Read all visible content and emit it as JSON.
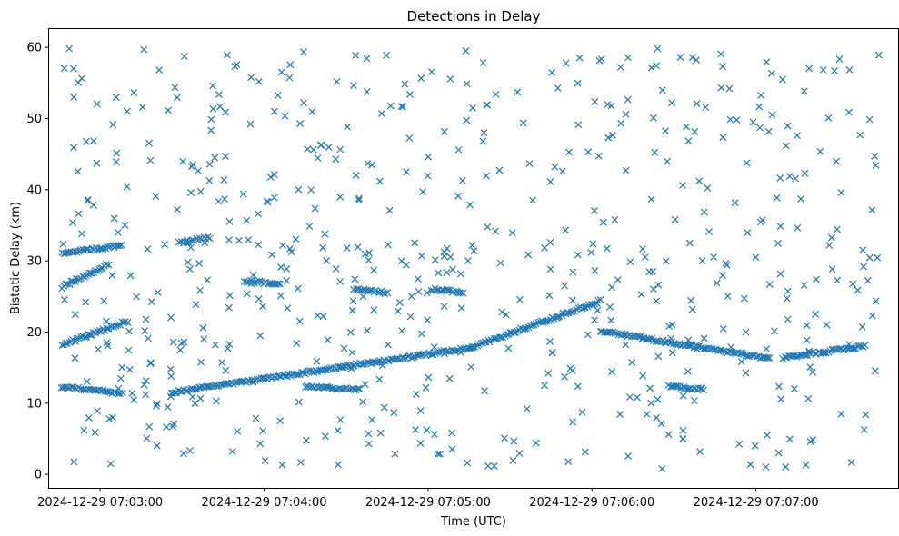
{
  "chart_data": {
    "type": "scatter",
    "title": "Detections in Delay",
    "xlabel": "Time (UTC)",
    "ylabel": "Bistatic Delay (km)",
    "x_axis_type": "time",
    "x_tick_labels": [
      {
        "t": "2024-12-29T07:03:00",
        "label": "2024-12-29 07:03:00"
      },
      {
        "t": "2024-12-29T07:04:00",
        "label": "2024-12-29 07:04:00"
      },
      {
        "t": "2024-12-29T07:05:00",
        "label": "2024-12-29 07:05:00"
      },
      {
        "t": "2024-12-29T07:06:00",
        "label": "2024-12-29 07:06:00"
      },
      {
        "t": "2024-12-29T07:07:00",
        "label": "2024-12-29 07:07:00"
      }
    ],
    "xlim": [
      "2024-12-29T07:02:41",
      "2024-12-29T07:07:52"
    ],
    "y_ticks": [
      0,
      10,
      20,
      30,
      40,
      50,
      60
    ],
    "ylim": [
      -1.9,
      62.7
    ],
    "grid": false,
    "legend": "none",
    "marker": "x",
    "marker_color": "#1f77b4",
    "data_extent": {
      "t_start": "2024-12-29T07:02:46",
      "t_end": "2024-12-29T07:07:45",
      "y_min": 0.5,
      "y_max": 60
    },
    "tracks": [
      {
        "t_start": "2024-12-29T07:02:46",
        "t_end": "2024-12-29T07:03:08",
        "y_start": 31.0,
        "y_end": 32.2
      },
      {
        "t_start": "2024-12-29T07:02:46",
        "t_end": "2024-12-29T07:03:03",
        "y_start": 26.3,
        "y_end": 29.5
      },
      {
        "t_start": "2024-12-29T07:02:46",
        "t_end": "2024-12-29T07:03:10",
        "y_start": 18.2,
        "y_end": 21.5
      },
      {
        "t_start": "2024-12-29T07:02:46",
        "t_end": "2024-12-29T07:03:08",
        "y_start": 12.3,
        "y_end": 11.4
      },
      {
        "t_start": "2024-12-29T07:03:26",
        "t_end": "2024-12-29T07:05:16",
        "y_start": 11.5,
        "y_end": 17.8
      },
      {
        "t_start": "2024-12-29T07:05:16",
        "t_end": "2024-12-29T07:06:03",
        "y_start": 17.8,
        "y_end": 24.4
      },
      {
        "t_start": "2024-12-29T07:06:03",
        "t_end": "2024-12-29T07:07:05",
        "y_start": 20.1,
        "y_end": 16.3
      },
      {
        "t_start": "2024-12-29T07:07:10",
        "t_end": "2024-12-29T07:07:40",
        "y_start": 16.4,
        "y_end": 18.0
      },
      {
        "t_start": "2024-12-29T07:03:29",
        "t_end": "2024-12-29T07:03:40",
        "y_start": 32.5,
        "y_end": 33.3
      },
      {
        "t_start": "2024-12-29T07:03:53",
        "t_end": "2024-12-29T07:04:06",
        "y_start": 27.2,
        "y_end": 26.7
      },
      {
        "t_start": "2024-12-29T07:04:15",
        "t_end": "2024-12-29T07:04:35",
        "y_start": 12.3,
        "y_end": 11.9
      },
      {
        "t_start": "2024-12-29T07:04:33",
        "t_end": "2024-12-29T07:04:45",
        "y_start": 26.1,
        "y_end": 25.5
      },
      {
        "t_start": "2024-12-29T07:05:01",
        "t_end": "2024-12-29T07:05:13",
        "y_start": 26.0,
        "y_end": 25.6
      },
      {
        "t_start": "2024-12-29T07:06:28",
        "t_end": "2024-12-29T07:06:41",
        "y_start": 12.4,
        "y_end": 11.9
      }
    ],
    "scatter_seed": 20241229,
    "scatter_count": 620
  }
}
